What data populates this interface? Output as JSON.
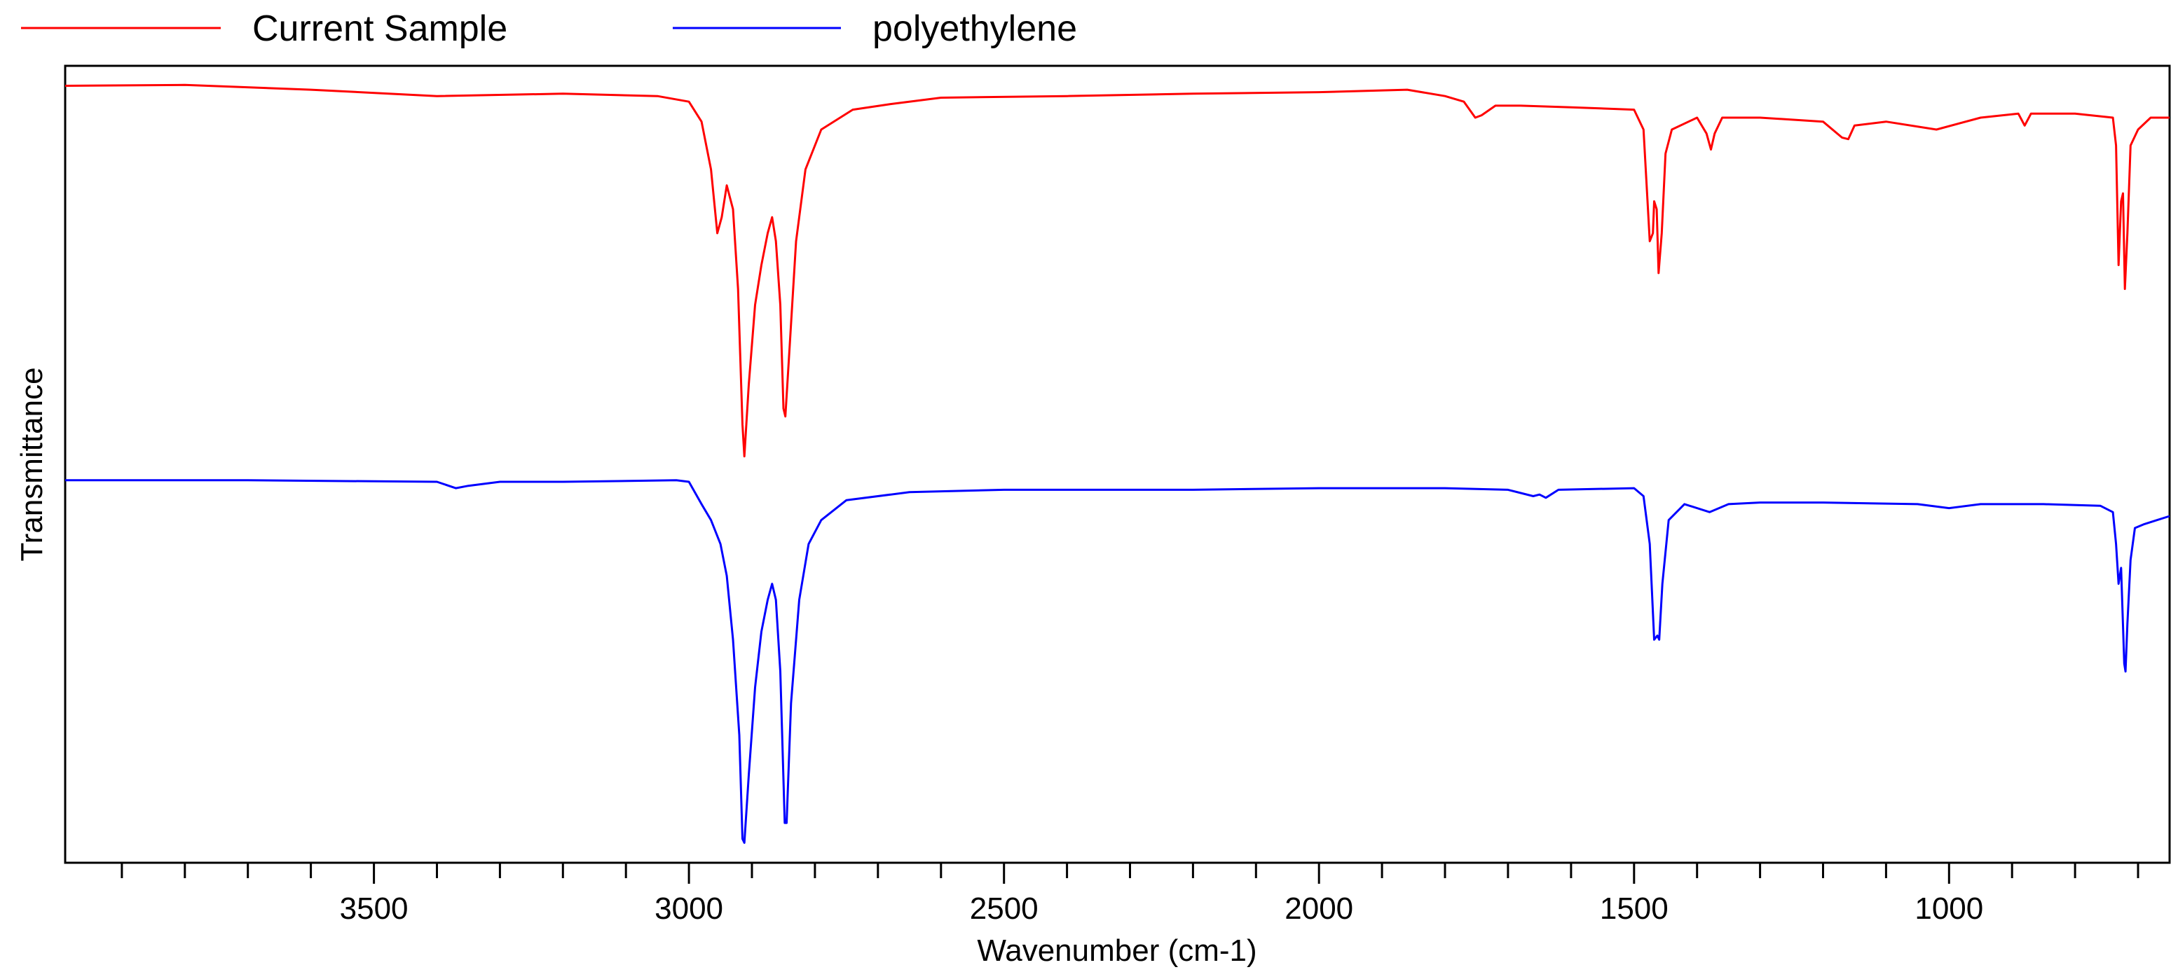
{
  "chart_data": {
    "type": "line",
    "title": "",
    "xlabel": "Wavenumber (cm-1)",
    "ylabel": "Transmittance",
    "xlim": [
      3990,
      650
    ],
    "x_reversed": true,
    "y_ticks_shown": false,
    "grid": false,
    "legend_position": "top-left, above plot",
    "x_ticks": [
      3500,
      3000,
      2500,
      2000,
      1500,
      1000
    ],
    "x_tick_labels": [
      "3500",
      "3000",
      "2500",
      "2000",
      "1500",
      "1000"
    ],
    "x_minor_step": 100,
    "series": [
      {
        "name": "Current Sample",
        "color": "#ff0000",
        "y_unit": "relative transmittance (0 = plot bottom, 1 = plot top)",
        "points": [
          [
            3990,
            0.975
          ],
          [
            3800,
            0.976
          ],
          [
            3600,
            0.97
          ],
          [
            3400,
            0.962
          ],
          [
            3200,
            0.965
          ],
          [
            3050,
            0.962
          ],
          [
            3000,
            0.955
          ],
          [
            2980,
            0.93
          ],
          [
            2965,
            0.87
          ],
          [
            2955,
            0.79
          ],
          [
            2948,
            0.81
          ],
          [
            2940,
            0.85
          ],
          [
            2930,
            0.82
          ],
          [
            2922,
            0.72
          ],
          [
            2915,
            0.55
          ],
          [
            2912,
            0.51
          ],
          [
            2905,
            0.6
          ],
          [
            2895,
            0.7
          ],
          [
            2885,
            0.75
          ],
          [
            2875,
            0.79
          ],
          [
            2868,
            0.81
          ],
          [
            2862,
            0.78
          ],
          [
            2855,
            0.7
          ],
          [
            2850,
            0.57
          ],
          [
            2847,
            0.56
          ],
          [
            2840,
            0.65
          ],
          [
            2830,
            0.78
          ],
          [
            2815,
            0.87
          ],
          [
            2790,
            0.92
          ],
          [
            2740,
            0.945
          ],
          [
            2680,
            0.952
          ],
          [
            2600,
            0.96
          ],
          [
            2400,
            0.962
          ],
          [
            2200,
            0.965
          ],
          [
            2000,
            0.967
          ],
          [
            1860,
            0.97
          ],
          [
            1800,
            0.962
          ],
          [
            1770,
            0.955
          ],
          [
            1752,
            0.935
          ],
          [
            1742,
            0.938
          ],
          [
            1720,
            0.95
          ],
          [
            1680,
            0.95
          ],
          [
            1600,
            0.948
          ],
          [
            1500,
            0.945
          ],
          [
            1485,
            0.92
          ],
          [
            1475,
            0.78
          ],
          [
            1470,
            0.79
          ],
          [
            1468,
            0.83
          ],
          [
            1464,
            0.82
          ],
          [
            1461,
            0.74
          ],
          [
            1456,
            0.79
          ],
          [
            1450,
            0.89
          ],
          [
            1440,
            0.92
          ],
          [
            1400,
            0.935
          ],
          [
            1385,
            0.915
          ],
          [
            1378,
            0.895
          ],
          [
            1372,
            0.915
          ],
          [
            1360,
            0.935
          ],
          [
            1300,
            0.935
          ],
          [
            1200,
            0.93
          ],
          [
            1170,
            0.91
          ],
          [
            1160,
            0.908
          ],
          [
            1150,
            0.925
          ],
          [
            1100,
            0.93
          ],
          [
            1020,
            0.92
          ],
          [
            950,
            0.935
          ],
          [
            890,
            0.94
          ],
          [
            880,
            0.925
          ],
          [
            870,
            0.94
          ],
          [
            800,
            0.94
          ],
          [
            740,
            0.935
          ],
          [
            735,
            0.9
          ],
          [
            731,
            0.75
          ],
          [
            727,
            0.83
          ],
          [
            724,
            0.84
          ],
          [
            721,
            0.72
          ],
          [
            717,
            0.79
          ],
          [
            712,
            0.9
          ],
          [
            700,
            0.92
          ],
          [
            680,
            0.935
          ],
          [
            650,
            0.935
          ]
        ]
      },
      {
        "name": "polyethylene",
        "color": "#0000ff",
        "y_unit": "relative transmittance (0 = plot bottom, 1 = plot top)",
        "points": [
          [
            3990,
            0.48
          ],
          [
            3700,
            0.48
          ],
          [
            3400,
            0.478
          ],
          [
            3370,
            0.47
          ],
          [
            3350,
            0.473
          ],
          [
            3300,
            0.478
          ],
          [
            3200,
            0.478
          ],
          [
            3020,
            0.48
          ],
          [
            3000,
            0.478
          ],
          [
            2980,
            0.45
          ],
          [
            2965,
            0.43
          ],
          [
            2950,
            0.4
          ],
          [
            2940,
            0.36
          ],
          [
            2930,
            0.28
          ],
          [
            2920,
            0.16
          ],
          [
            2915,
            0.03
          ],
          [
            2912,
            0.025
          ],
          [
            2905,
            0.11
          ],
          [
            2895,
            0.22
          ],
          [
            2885,
            0.29
          ],
          [
            2875,
            0.33
          ],
          [
            2868,
            0.35
          ],
          [
            2862,
            0.33
          ],
          [
            2855,
            0.24
          ],
          [
            2848,
            0.05
          ],
          [
            2845,
            0.05
          ],
          [
            2838,
            0.2
          ],
          [
            2825,
            0.33
          ],
          [
            2810,
            0.4
          ],
          [
            2790,
            0.43
          ],
          [
            2750,
            0.455
          ],
          [
            2650,
            0.465
          ],
          [
            2500,
            0.468
          ],
          [
            2200,
            0.468
          ],
          [
            2000,
            0.47
          ],
          [
            1800,
            0.47
          ],
          [
            1700,
            0.468
          ],
          [
            1660,
            0.46
          ],
          [
            1650,
            0.462
          ],
          [
            1640,
            0.458
          ],
          [
            1620,
            0.468
          ],
          [
            1500,
            0.47
          ],
          [
            1485,
            0.46
          ],
          [
            1475,
            0.4
          ],
          [
            1468,
            0.28
          ],
          [
            1463,
            0.285
          ],
          [
            1460,
            0.28
          ],
          [
            1455,
            0.35
          ],
          [
            1445,
            0.43
          ],
          [
            1420,
            0.45
          ],
          [
            1380,
            0.44
          ],
          [
            1350,
            0.45
          ],
          [
            1300,
            0.452
          ],
          [
            1200,
            0.452
          ],
          [
            1050,
            0.45
          ],
          [
            1000,
            0.445
          ],
          [
            950,
            0.45
          ],
          [
            850,
            0.45
          ],
          [
            760,
            0.448
          ],
          [
            740,
            0.44
          ],
          [
            735,
            0.4
          ],
          [
            731,
            0.35
          ],
          [
            727,
            0.37
          ],
          [
            722,
            0.25
          ],
          [
            720,
            0.24
          ],
          [
            717,
            0.3
          ],
          [
            712,
            0.38
          ],
          [
            705,
            0.42
          ],
          [
            690,
            0.425
          ],
          [
            670,
            0.43
          ],
          [
            650,
            0.435
          ]
        ]
      }
    ]
  }
}
